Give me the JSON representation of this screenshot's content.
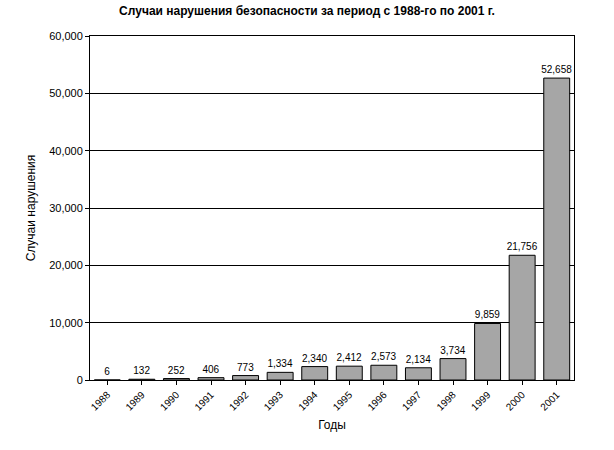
{
  "chart_data": {
    "type": "bar",
    "title": "Случаи нарушения безопасности за период с 1988-го по 2001 г.",
    "x_label": "Годы",
    "y_label": "Случаи нарушения",
    "categories": [
      "1988",
      "1989",
      "1990",
      "1991",
      "1992",
      "1993",
      "1994",
      "1995",
      "1996",
      "1997",
      "1998",
      "1999",
      "2000",
      "2001"
    ],
    "values": [
      6,
      132,
      252,
      406,
      773,
      1334,
      2340,
      2412,
      2573,
      2134,
      3734,
      9859,
      21756,
      52658
    ],
    "value_labels": [
      "6",
      "132",
      "252",
      "406",
      "773",
      "1,334",
      "2,340",
      "2,412",
      "2,573",
      "2,134",
      "3,734",
      "9,859",
      "21,756",
      "52,658"
    ],
    "color": "#a6a6a6",
    "ylim": [
      0,
      60000
    ],
    "yticks": [
      0,
      {
        "value": 10000,
        "label": "10,000"
      },
      {
        "value": 20000,
        "label": "20,000"
      },
      {
        "value": 30000,
        "label": "30,000"
      },
      {
        "value": 40000,
        "label": "40,000"
      },
      {
        "value": 50000,
        "label": "50,000"
      },
      {
        "value": 60000,
        "label": "60,000"
      }
    ],
    "grid": true,
    "data_labels": true
  }
}
